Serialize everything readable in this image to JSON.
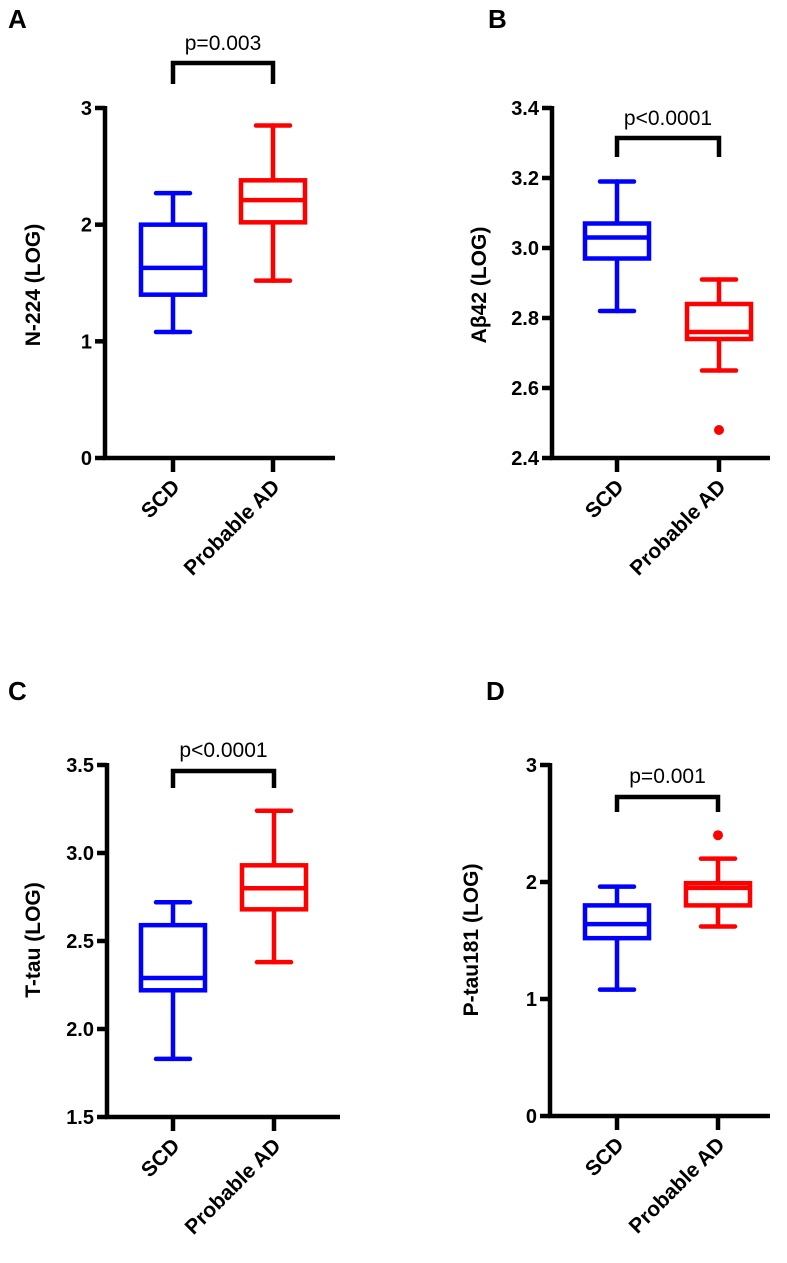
{
  "chart_data": [
    {
      "type": "box",
      "panel_label": "A",
      "ylabel": "N-224 (LOG)",
      "categories": [
        "SCD",
        "Probable AD"
      ],
      "ylim": [
        0,
        3
      ],
      "yticks": [
        0,
        1,
        2,
        3
      ],
      "ytick_labels": [
        "0",
        "1",
        "2",
        "3"
      ],
      "annotation": "p=0.003",
      "series": [
        {
          "name": "SCD",
          "color": "#0000ff",
          "min": 1.08,
          "q1": 1.4,
          "median": 1.63,
          "q3": 2.0,
          "max": 2.27,
          "outliers": []
        },
        {
          "name": "Probable AD",
          "color": "#ff0000",
          "min": 1.52,
          "q1": 2.02,
          "median": 2.21,
          "q3": 2.38,
          "max": 2.85,
          "outliers": []
        }
      ]
    },
    {
      "type": "box",
      "panel_label": "B",
      "ylabel": "Aβ42 (LOG)",
      "categories": [
        "SCD",
        "Probable AD"
      ],
      "ylim": [
        2.4,
        3.4
      ],
      "yticks": [
        2.4,
        2.6,
        2.8,
        3.0,
        3.2,
        3.4
      ],
      "ytick_labels": [
        "2.4",
        "2.6",
        "2.8",
        "3.0",
        "3.2",
        "3.4"
      ],
      "annotation": "p<0.0001",
      "series": [
        {
          "name": "SCD",
          "color": "#0000ff",
          "min": 2.82,
          "q1": 2.97,
          "median": 3.03,
          "q3": 3.07,
          "max": 3.19,
          "outliers": []
        },
        {
          "name": "Probable AD",
          "color": "#ff0000",
          "min": 2.65,
          "q1": 2.74,
          "median": 2.76,
          "q3": 2.84,
          "max": 2.91,
          "outliers": [
            2.48
          ]
        }
      ]
    },
    {
      "type": "box",
      "panel_label": "C",
      "ylabel": "T-tau (LOG)",
      "categories": [
        "SCD",
        "Probable AD"
      ],
      "ylim": [
        1.5,
        3.5
      ],
      "yticks": [
        1.5,
        2.0,
        2.5,
        3.0,
        3.5
      ],
      "ytick_labels": [
        "1.5",
        "2.0",
        "2.5",
        "3.0",
        "3.5"
      ],
      "annotation": "p<0.0001",
      "series": [
        {
          "name": "SCD",
          "color": "#0000ff",
          "min": 1.83,
          "q1": 2.22,
          "median": 2.29,
          "q3": 2.59,
          "max": 2.72,
          "outliers": []
        },
        {
          "name": "Probable AD",
          "color": "#ff0000",
          "min": 2.38,
          "q1": 2.68,
          "median": 2.8,
          "q3": 2.93,
          "max": 3.24,
          "outliers": []
        }
      ]
    },
    {
      "type": "box",
      "panel_label": "D",
      "ylabel": "P-tau181 (LOG)",
      "categories": [
        "SCD",
        "Probable AD"
      ],
      "ylim": [
        0,
        3
      ],
      "yticks": [
        0,
        1,
        2,
        3
      ],
      "ytick_labels": [
        "0",
        "1",
        "2",
        "3"
      ],
      "annotation": "p=0.001",
      "series": [
        {
          "name": "SCD",
          "color": "#0000ff",
          "min": 1.08,
          "q1": 1.52,
          "median": 1.64,
          "q3": 1.8,
          "max": 1.96,
          "outliers": []
        },
        {
          "name": "Probable AD",
          "color": "#ff0000",
          "min": 1.62,
          "q1": 1.8,
          "median": 1.95,
          "q3": 1.99,
          "max": 2.2,
          "outliers": [
            2.4
          ]
        }
      ]
    }
  ]
}
